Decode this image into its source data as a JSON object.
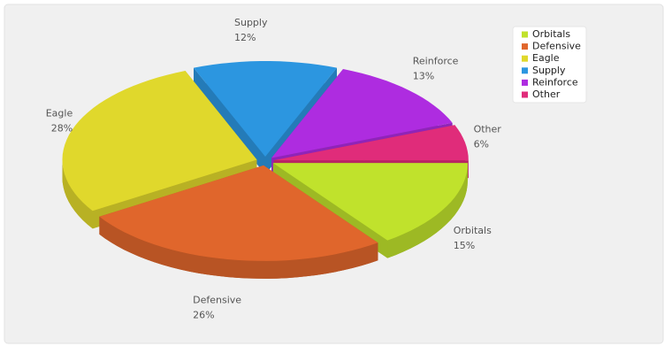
{
  "chart_data": {
    "type": "pie3d",
    "categories": [
      "Orbitals",
      "Defensive",
      "Eagle",
      "Supply",
      "Reinforce",
      "Other"
    ],
    "values": [
      15,
      26,
      28,
      12,
      13,
      6
    ],
    "value_labels": [
      "15%",
      "26%",
      "28%",
      "12%",
      "13%",
      "6%"
    ],
    "colors": [
      "#c0e22c",
      "#e0662c",
      "#e0d82c",
      "#2c96e0",
      "#ae2ce0",
      "#e02c7a"
    ],
    "legend": "top-right"
  }
}
